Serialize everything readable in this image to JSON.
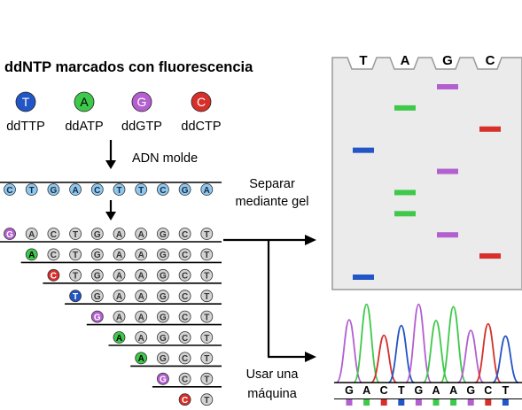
{
  "title": "ddNTP marcados con fluorescencia",
  "nucleotides": [
    {
      "letter": "T",
      "label": "ddTTP",
      "color": "#2255c6"
    },
    {
      "letter": "A",
      "label": "ddATP",
      "color": "#3ec94a"
    },
    {
      "letter": "G",
      "label": "ddGTP",
      "color": "#b35fd0"
    },
    {
      "letter": "C",
      "label": "ddCTP",
      "color": "#d7302a"
    }
  ],
  "template_label": "ADN molde",
  "template_sequence": [
    "C",
    "T",
    "G",
    "A",
    "C",
    "T",
    "T",
    "C",
    "G",
    "A"
  ],
  "template_color": "#8ec8ee",
  "fragments": [
    [
      "G",
      "A",
      "C",
      "T",
      "G",
      "A",
      "A",
      "G",
      "C",
      "T"
    ],
    [
      "A",
      "C",
      "T",
      "G",
      "A",
      "A",
      "G",
      "C",
      "T"
    ],
    [
      "C",
      "T",
      "G",
      "A",
      "A",
      "G",
      "C",
      "T"
    ],
    [
      "T",
      "G",
      "A",
      "A",
      "G",
      "C",
      "T"
    ],
    [
      "G",
      "A",
      "A",
      "G",
      "C",
      "T"
    ],
    [
      "A",
      "A",
      "G",
      "C",
      "T"
    ],
    [
      "A",
      "G",
      "C",
      "T"
    ],
    [
      "G",
      "C",
      "T"
    ],
    [
      "C",
      "T"
    ]
  ],
  "separate_label_line1": "Separar",
  "separate_label_line2": "mediante gel",
  "machine_label_line1": "Usar una",
  "machine_label_line2": "máquina",
  "gel_lanes": [
    "T",
    "A",
    "G",
    "C"
  ],
  "gel_bands": [
    "G",
    "A",
    "C",
    "T",
    "G",
    "A",
    "A",
    "G",
    "C",
    "T"
  ],
  "read_sequence": [
    "G",
    "A",
    "C",
    "T",
    "G",
    "A",
    "A",
    "G",
    "C",
    "T"
  ],
  "neutral_color": "#d3d3d3"
}
